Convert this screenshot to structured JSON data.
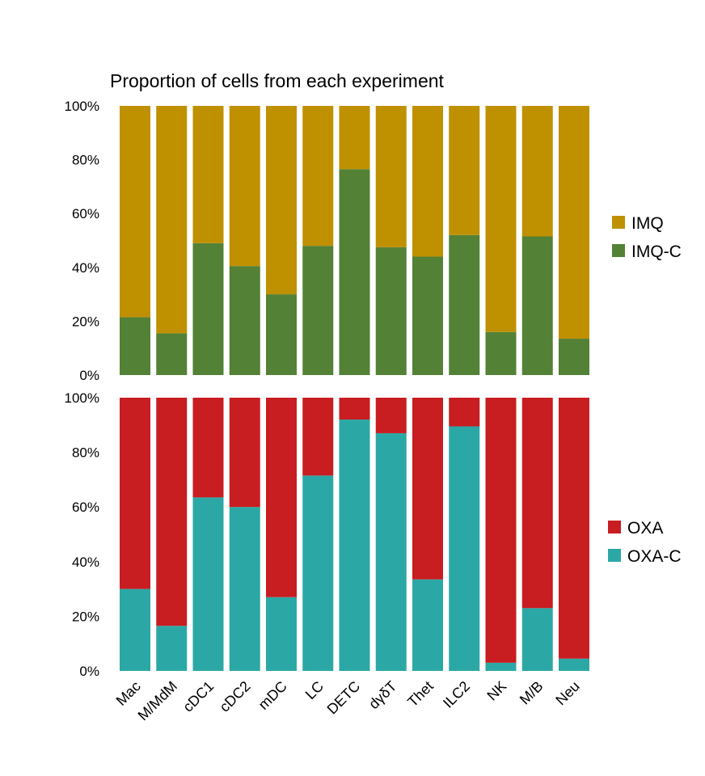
{
  "chart_data": {
    "type": "bar",
    "stacked": true,
    "percent_stacked": true,
    "title": "Proportion of cells from each experiment",
    "categories": [
      "Mac",
      "M/MdM",
      "cDC1",
      "cDC2",
      "mDC",
      "LC",
      "DETC",
      "dγδT",
      "Thet",
      "ILC2",
      "NK",
      "M/B",
      "Neu"
    ],
    "yticks": [
      "0%",
      "20%",
      "40%",
      "60%",
      "80%",
      "100%"
    ],
    "ylim": [
      0,
      100
    ],
    "grid": false,
    "panels": [
      {
        "legend_position": "right",
        "series": [
          {
            "name": "IMQ",
            "color": "#bf9000",
            "values": [
              78.5,
              84.5,
              51,
              59.5,
              70,
              52,
              23.5,
              52.5,
              56,
              48,
              84,
              48.5,
              86.5
            ]
          },
          {
            "name": "IMQ-C",
            "color": "#538135",
            "values": [
              21.5,
              15.5,
              49,
              40.5,
              30,
              48,
              76.5,
              47.5,
              44,
              52,
              16,
              51.5,
              13.5
            ]
          }
        ]
      },
      {
        "legend_position": "right",
        "series": [
          {
            "name": "OXA",
            "color": "#c81d21",
            "values": [
              70,
              83.5,
              36.5,
              40,
              73,
              28.5,
              8,
              13,
              66.5,
              10.5,
              97,
              77,
              95.5
            ]
          },
          {
            "name": "OXA-C",
            "color": "#2ba8a5",
            "values": [
              30,
              16.5,
              63.5,
              60,
              27,
              71.5,
              92,
              87,
              33.5,
              89.5,
              3,
              23,
              4.5
            ]
          }
        ]
      }
    ]
  }
}
